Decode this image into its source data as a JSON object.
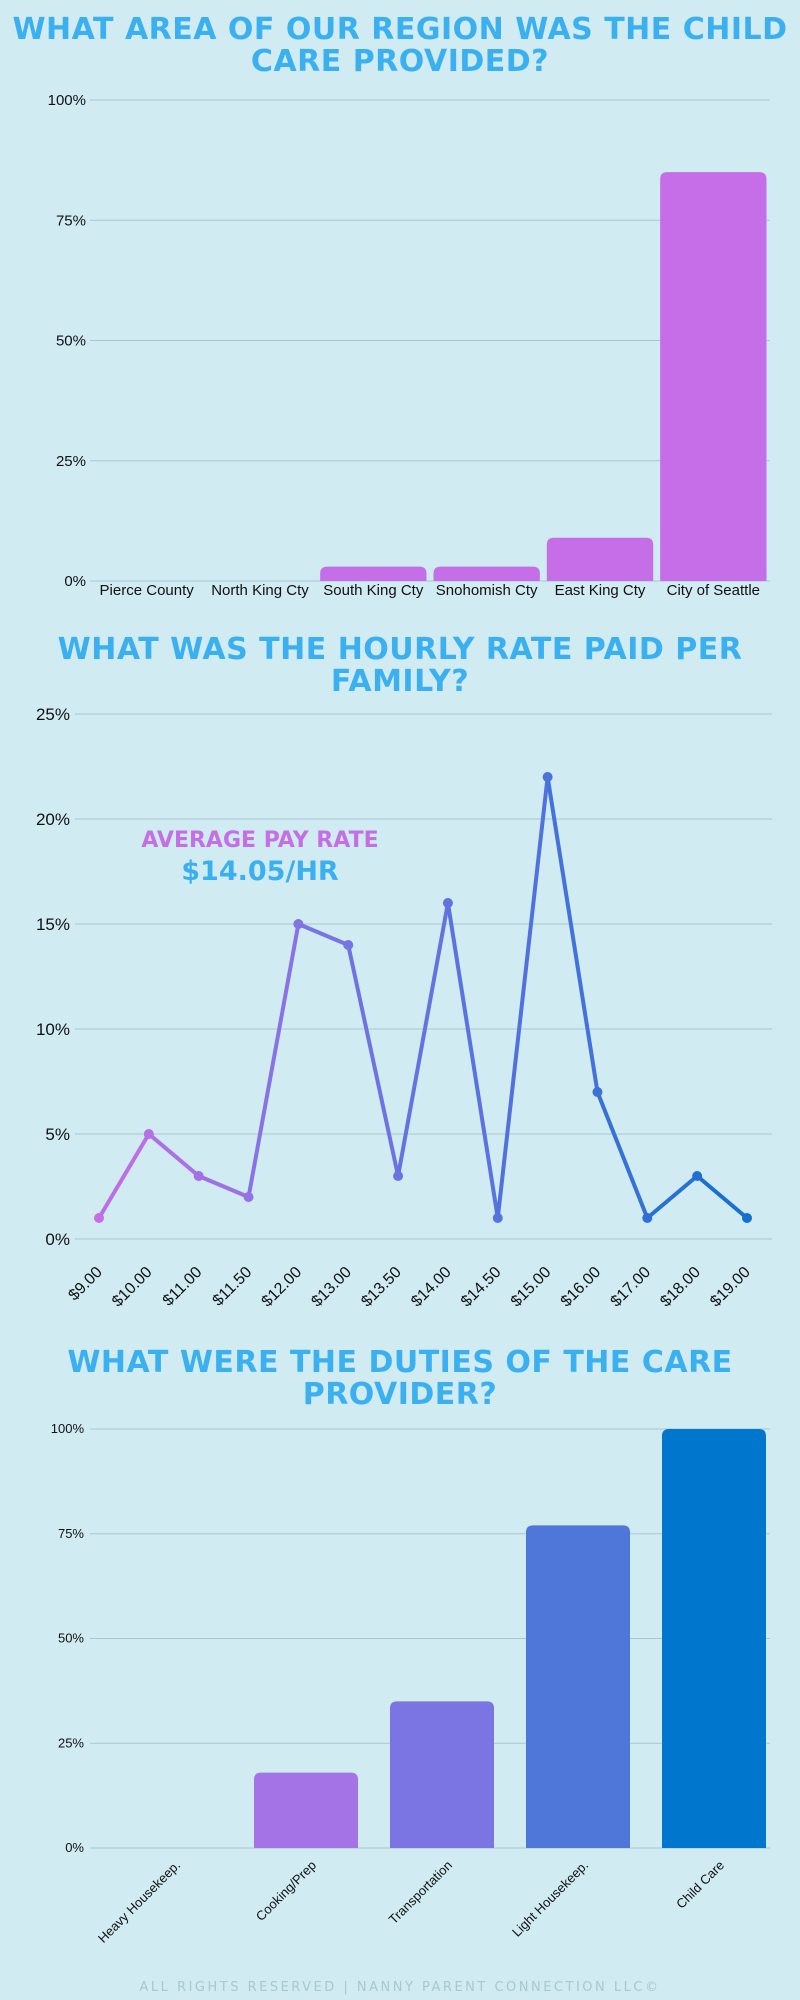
{
  "chart_data": [
    {
      "type": "bar",
      "title": "WHAT AREA OF OUR REGION WAS THE CHILD CARE PROVIDED?",
      "categories": [
        "Pierce County",
        "North King Cty",
        "South King Cty",
        "Snohomish Cty",
        "East King Cty",
        "City of Seattle"
      ],
      "values": [
        0,
        0,
        3,
        3,
        9,
        85
      ],
      "ylim": [
        0,
        100
      ],
      "yticks": [
        "0%",
        "25%",
        "50%",
        "75%",
        "100%"
      ],
      "grid": true,
      "color": "#c66de8"
    },
    {
      "type": "line",
      "title": "WHAT WAS THE HOURLY RATE PAID PER FAMILY?",
      "x": [
        "$9.00",
        "$10.00",
        "$11.00",
        "$11.50",
        "$12.00",
        "$13.00",
        "$13.50",
        "$14.00",
        "$14.50",
        "$15.00",
        "$16.00",
        "$17.00",
        "$18.00",
        "$19.00"
      ],
      "values": [
        1,
        5,
        3,
        2,
        15,
        14,
        3,
        16,
        1,
        22,
        7,
        1,
        3,
        1
      ],
      "ylim": [
        0,
        25
      ],
      "yticks": [
        "0%",
        "5%",
        "10%",
        "15%",
        "20%",
        "25%"
      ],
      "grid": true,
      "gradient": [
        "#c66de8",
        "#7b74e3",
        "#4f72dc",
        "#1270d0"
      ],
      "annotation": {
        "label": "AVERAGE PAY RATE",
        "value": "$14.05/HR"
      }
    },
    {
      "type": "bar",
      "title": "WHAT WERE THE DUTIES OF THE CARE PROVIDER?",
      "categories": [
        "Heavy Housekeep.",
        "Cooking/Prep",
        "Transportation",
        "Light Housekeep.",
        "Child Care"
      ],
      "values": [
        0,
        18,
        35,
        77,
        100
      ],
      "ylim": [
        0,
        100
      ],
      "yticks": [
        "0%",
        "25%",
        "50%",
        "75%",
        "100%"
      ],
      "grid": true,
      "colors": [
        "#c66de8",
        "#a473e6",
        "#7b74e3",
        "#4f77da",
        "#0077cc"
      ]
    }
  ],
  "footer": "ALL RIGHTS RESERVED | NANNY PARENT CONNECTION LLC©"
}
